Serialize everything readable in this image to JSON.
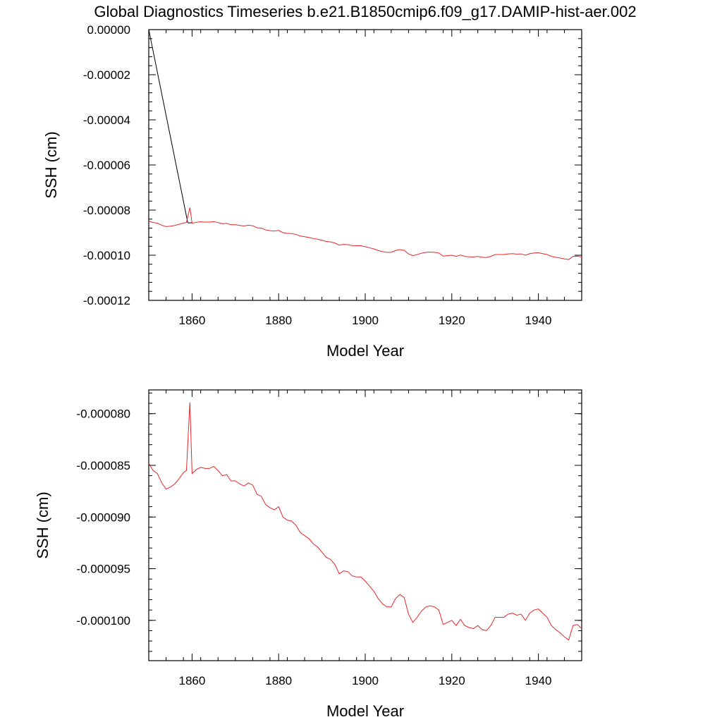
{
  "figure": {
    "title": "Global Diagnostics Timeseries b.e21.B1850cmip6.f09_g17.DAMIP-hist-aer.002"
  },
  "chart_data": [
    {
      "type": "line",
      "title": "Global Diagnostics Timeseries b.e21.B1850cmip6.f09_g17.DAMIP-hist-aer.002",
      "xlabel": "Model Year",
      "ylabel": "SSH (cm)",
      "xlim": [
        1850,
        1950
      ],
      "ylim": [
        -0.00012,
        0.0
      ],
      "xticks": [
        1860,
        1880,
        1900,
        1920,
        1940
      ],
      "xtick_labels": [
        "1860",
        "1880",
        "1900",
        "1920",
        "1940"
      ],
      "yticks": [
        0.0,
        -2e-05,
        -4e-05,
        -6e-05,
        -8e-05,
        -0.0001,
        -0.00012
      ],
      "ytick_labels": [
        "0.00000",
        "-0.00002",
        "-0.00004",
        "-0.00006",
        "-0.00008",
        "-0.00010",
        "-0.00012"
      ],
      "grid": false,
      "series": [
        {
          "color": "#000000",
          "x": [
            1850.0,
            1859.0,
            1859.3,
            1860.0
          ],
          "y": [
            0.0,
            -8.55e-05,
            -8.57e-05,
            -8.56e-05
          ]
        },
        {
          "color": "#e8262a",
          "x": [
            1850,
            1851,
            1852,
            1853,
            1854,
            1855,
            1856,
            1857,
            1858,
            1858.7,
            1859.5,
            1860,
            1861,
            1862,
            1863,
            1864,
            1865,
            1866,
            1867,
            1868,
            1869,
            1870,
            1871,
            1872,
            1873,
            1874,
            1875,
            1876,
            1877,
            1878,
            1879,
            1880,
            1881,
            1882,
            1883,
            1884,
            1885,
            1886,
            1887,
            1888,
            1889,
            1890,
            1891,
            1892,
            1893,
            1894,
            1895,
            1896,
            1897,
            1898,
            1899,
            1900,
            1901,
            1902,
            1903,
            1904,
            1905,
            1906,
            1907,
            1908,
            1909,
            1910,
            1911,
            1912,
            1913,
            1914,
            1915,
            1916,
            1917,
            1918,
            1919,
            1920,
            1921,
            1922,
            1923,
            1924,
            1925,
            1926,
            1927,
            1928,
            1929,
            1930,
            1931,
            1932,
            1933,
            1934,
            1935,
            1936,
            1937,
            1938,
            1939,
            1940,
            1941,
            1942,
            1943,
            1944,
            1945,
            1946,
            1947,
            1948,
            1949,
            1950
          ],
          "y": [
            -8.48e-05,
            -8.55e-05,
            -8.58e-05,
            -8.67e-05,
            -8.73e-05,
            -8.71e-05,
            -8.68e-05,
            -8.63e-05,
            -8.57e-05,
            -8.55e-05,
            -7.89e-05,
            -8.58e-05,
            -8.54e-05,
            -8.52e-05,
            -8.53e-05,
            -8.53e-05,
            -8.51e-05,
            -8.55e-05,
            -8.6e-05,
            -8.59e-05,
            -8.65e-05,
            -8.65e-05,
            -8.68e-05,
            -8.7e-05,
            -8.67e-05,
            -8.69e-05,
            -8.78e-05,
            -8.8e-05,
            -8.88e-05,
            -8.91e-05,
            -8.93e-05,
            -8.9e-05,
            -9e-05,
            -9.03e-05,
            -9.04e-05,
            -9.08e-05,
            -9.15e-05,
            -9.18e-05,
            -9.21e-05,
            -9.26e-05,
            -9.29e-05,
            -9.34e-05,
            -9.39e-05,
            -9.41e-05,
            -9.46e-05,
            -9.55e-05,
            -9.52e-05,
            -9.53e-05,
            -9.57e-05,
            -9.58e-05,
            -9.58e-05,
            -9.62e-05,
            -9.67e-05,
            -9.72e-05,
            -9.79e-05,
            -9.84e-05,
            -9.87e-05,
            -9.87e-05,
            -9.79e-05,
            -9.75e-05,
            -9.78e-05,
            -9.94e-05,
            -0.0001002,
            -9.97e-05,
            -9.91e-05,
            -9.87e-05,
            -9.86e-05,
            -9.87e-05,
            -9.9e-05,
            -0.0001004,
            -0.0001002,
            -0.0001,
            -0.0001005,
            -9.99e-05,
            -0.0001005,
            -0.0001007,
            -0.0001008,
            -0.0001005,
            -0.0001009,
            -0.000101,
            -0.0001005,
            -9.97e-05,
            -9.97e-05,
            -9.97e-05,
            -9.94e-05,
            -9.93e-05,
            -9.95e-05,
            -9.94e-05,
            -0.0001,
            -9.93e-05,
            -9.9e-05,
            -9.89e-05,
            -9.93e-05,
            -9.97e-05,
            -0.0001005,
            -0.0001009,
            -0.0001012,
            -0.0001016,
            -0.0001019,
            -0.0001005,
            -0.0001004,
            -0.0001008
          ]
        }
      ]
    },
    {
      "type": "line",
      "xlabel": "Model Year",
      "ylabel": "SSH (cm)",
      "xlim": [
        1850,
        1950
      ],
      "ylim": [
        -0.0001039,
        -7.77e-05
      ],
      "xticks": [
        1860,
        1880,
        1900,
        1920,
        1940
      ],
      "xtick_labels": [
        "1860",
        "1880",
        "1900",
        "1920",
        "1940"
      ],
      "yticks": [
        -8e-05,
        -8.5e-05,
        -9e-05,
        -9.5e-05,
        -0.0001
      ],
      "ytick_labels": [
        "-0.000080",
        "-0.000085",
        "-0.000090",
        "-0.000095",
        "-0.000100"
      ],
      "grid": false,
      "series": [
        {
          "color": "#e8262a",
          "x": [
            1850,
            1851,
            1852,
            1853,
            1854,
            1855,
            1856,
            1857,
            1858,
            1858.7,
            1859.5,
            1860,
            1861,
            1862,
            1863,
            1864,
            1865,
            1866,
            1867,
            1868,
            1869,
            1870,
            1871,
            1872,
            1873,
            1874,
            1875,
            1876,
            1877,
            1878,
            1879,
            1880,
            1881,
            1882,
            1883,
            1884,
            1885,
            1886,
            1887,
            1888,
            1889,
            1890,
            1891,
            1892,
            1893,
            1894,
            1895,
            1896,
            1897,
            1898,
            1899,
            1900,
            1901,
            1902,
            1903,
            1904,
            1905,
            1906,
            1907,
            1908,
            1909,
            1910,
            1911,
            1912,
            1913,
            1914,
            1915,
            1916,
            1917,
            1918,
            1919,
            1920,
            1921,
            1922,
            1923,
            1924,
            1925,
            1926,
            1927,
            1928,
            1929,
            1930,
            1931,
            1932,
            1933,
            1934,
            1935,
            1936,
            1937,
            1938,
            1939,
            1940,
            1941,
            1942,
            1943,
            1944,
            1945,
            1946,
            1947,
            1948,
            1949,
            1950
          ],
          "y": [
            -8.48e-05,
            -8.55e-05,
            -8.58e-05,
            -8.67e-05,
            -8.73e-05,
            -8.71e-05,
            -8.68e-05,
            -8.63e-05,
            -8.57e-05,
            -8.55e-05,
            -7.89e-05,
            -8.58e-05,
            -8.54e-05,
            -8.52e-05,
            -8.53e-05,
            -8.53e-05,
            -8.51e-05,
            -8.55e-05,
            -8.6e-05,
            -8.59e-05,
            -8.65e-05,
            -8.65e-05,
            -8.68e-05,
            -8.7e-05,
            -8.67e-05,
            -8.69e-05,
            -8.78e-05,
            -8.8e-05,
            -8.88e-05,
            -8.91e-05,
            -8.93e-05,
            -8.9e-05,
            -9e-05,
            -9.03e-05,
            -9.04e-05,
            -9.08e-05,
            -9.15e-05,
            -9.18e-05,
            -9.21e-05,
            -9.26e-05,
            -9.29e-05,
            -9.34e-05,
            -9.39e-05,
            -9.41e-05,
            -9.46e-05,
            -9.55e-05,
            -9.52e-05,
            -9.53e-05,
            -9.57e-05,
            -9.58e-05,
            -9.58e-05,
            -9.62e-05,
            -9.67e-05,
            -9.72e-05,
            -9.79e-05,
            -9.84e-05,
            -9.87e-05,
            -9.87e-05,
            -9.79e-05,
            -9.75e-05,
            -9.78e-05,
            -9.94e-05,
            -0.0001002,
            -9.97e-05,
            -9.91e-05,
            -9.87e-05,
            -9.86e-05,
            -9.87e-05,
            -9.9e-05,
            -0.0001004,
            -0.0001002,
            -0.0001,
            -0.0001005,
            -9.99e-05,
            -0.0001005,
            -0.0001007,
            -0.0001008,
            -0.0001005,
            -0.0001009,
            -0.000101,
            -0.0001005,
            -9.97e-05,
            -9.97e-05,
            -9.97e-05,
            -9.94e-05,
            -9.93e-05,
            -9.95e-05,
            -9.94e-05,
            -0.0001,
            -9.93e-05,
            -9.9e-05,
            -9.89e-05,
            -9.93e-05,
            -9.97e-05,
            -0.0001005,
            -0.0001009,
            -0.0001012,
            -0.0001016,
            -0.0001019,
            -0.0001005,
            -0.0001004,
            -0.0001008
          ]
        }
      ]
    }
  ]
}
